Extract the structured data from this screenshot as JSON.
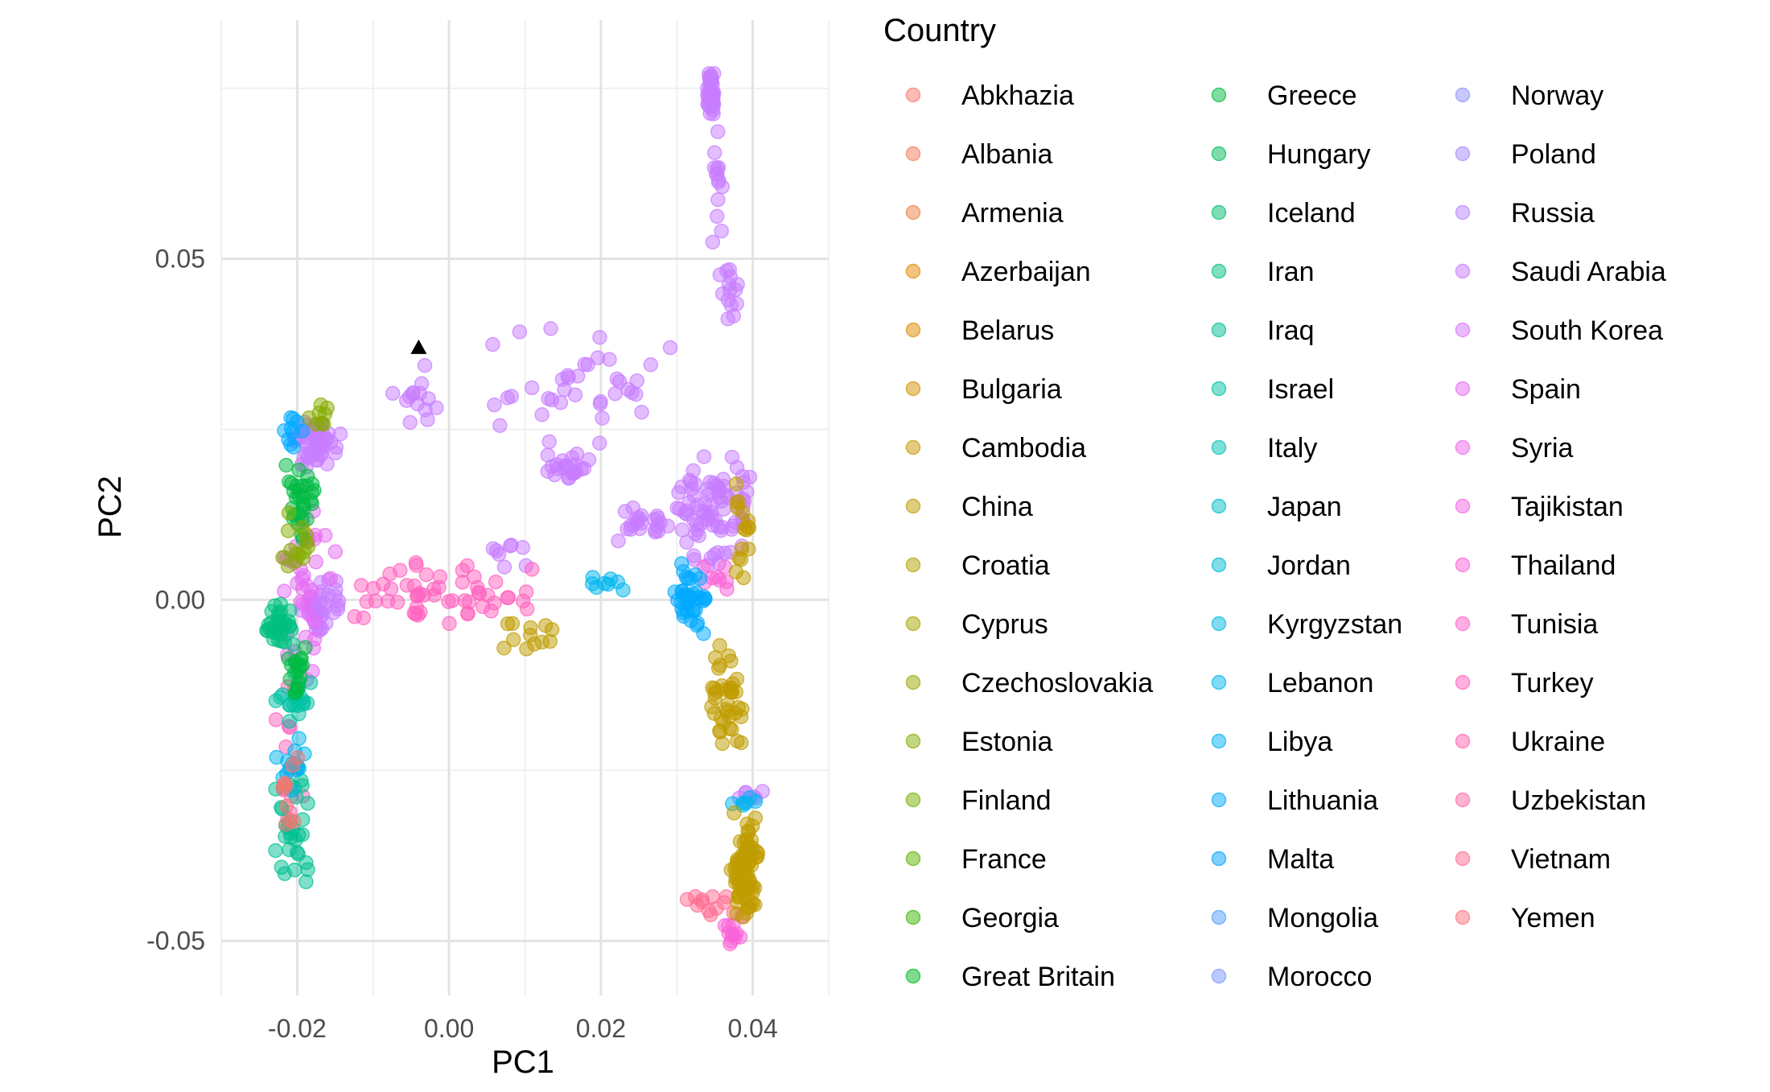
{
  "chart_data": {
    "type": "scatter",
    "title": "",
    "xlabel": "PC1",
    "ylabel": "PC2",
    "xlim": [
      -0.03,
      0.05
    ],
    "ylim": [
      -0.058,
      0.085
    ],
    "x_ticks": [
      -0.02,
      0.0,
      0.02,
      0.04
    ],
    "x_tick_labels": [
      "-0.02",
      "0.00",
      "0.02",
      "0.04"
    ],
    "y_ticks": [
      -0.05,
      0.0,
      0.05
    ],
    "y_tick_labels": [
      "-0.05",
      "0.00",
      "0.05"
    ],
    "grid": true,
    "point_alpha": 0.5,
    "legend": {
      "title": "Country",
      "placement": "right",
      "columns": 3,
      "entries": [
        {
          "name": "Abkhazia",
          "color": "#F8766D"
        },
        {
          "name": "Albania",
          "color": "#F37B59"
        },
        {
          "name": "Armenia",
          "color": "#ED8141"
        },
        {
          "name": "Azerbaijan",
          "color": "#E58700"
        },
        {
          "name": "Belarus",
          "color": "#DE8C00"
        },
        {
          "name": "Bulgaria",
          "color": "#D49200"
        },
        {
          "name": "Cambodia",
          "color": "#C99800"
        },
        {
          "name": "China",
          "color": "#BF9C00"
        },
        {
          "name": "Croatia",
          "color": "#B3A000"
        },
        {
          "name": "Cyprus",
          "color": "#A5A400"
        },
        {
          "name": "Czechoslovakia",
          "color": "#97A800"
        },
        {
          "name": "Estonia",
          "color": "#86AB00"
        },
        {
          "name": "Finland",
          "color": "#73AF00"
        },
        {
          "name": "France",
          "color": "#5BB300"
        },
        {
          "name": "Georgia",
          "color": "#3DB600"
        },
        {
          "name": "Great Britain",
          "color": "#00B81F"
        },
        {
          "name": "Greece",
          "color": "#00BA42"
        },
        {
          "name": "Hungary",
          "color": "#00BC59"
        },
        {
          "name": "Iceland",
          "color": "#00BD6D"
        },
        {
          "name": "Iran",
          "color": "#00BF7F"
        },
        {
          "name": "Iraq",
          "color": "#00C091"
        },
        {
          "name": "Israel",
          "color": "#00C1A3"
        },
        {
          "name": "Italy",
          "color": "#00C0B4"
        },
        {
          "name": "Japan",
          "color": "#00BFC4"
        },
        {
          "name": "Jordan",
          "color": "#00BCD3"
        },
        {
          "name": "Kyrgyzstan",
          "color": "#00B9E1"
        },
        {
          "name": "Lebanon",
          "color": "#00B5EE"
        },
        {
          "name": "Libya",
          "color": "#00B0F6"
        },
        {
          "name": "Lithuania",
          "color": "#00A9FF"
        },
        {
          "name": "Malta",
          "color": "#00A2FF"
        },
        {
          "name": "Mongolia",
          "color": "#529EFF"
        },
        {
          "name": "Morocco",
          "color": "#7997FF"
        },
        {
          "name": "Norway",
          "color": "#8F91FF"
        },
        {
          "name": "Poland",
          "color": "#A58AFF"
        },
        {
          "name": "Russia",
          "color": "#B983FF"
        },
        {
          "name": "Saudi Arabia",
          "color": "#C77CFF"
        },
        {
          "name": "South Korea",
          "color": "#D575FE"
        },
        {
          "name": "Spain",
          "color": "#E76BF3"
        },
        {
          "name": "Syria",
          "color": "#EF67EB"
        },
        {
          "name": "Tajikistan",
          "color": "#F564E3"
        },
        {
          "name": "Thailand",
          "color": "#FA62D8"
        },
        {
          "name": "Tunisia",
          "color": "#FD61CB"
        },
        {
          "name": "Turkey",
          "color": "#FF61BE"
        },
        {
          "name": "Ukraine",
          "color": "#FF63B0"
        },
        {
          "name": "Uzbekistan",
          "color": "#FF67A4"
        },
        {
          "name": "Vietnam",
          "color": "#FF6C91"
        },
        {
          "name": "Yemen",
          "color": "#FC717F"
        }
      ]
    },
    "highlighted_point": {
      "x": -0.004,
      "y": 0.037,
      "shape": "triangle",
      "color": "#000000"
    },
    "clusters": [
      {
        "color": "#C77CFF",
        "x": [
          0.0338,
          0.0352
        ],
        "y": [
          0.07,
          0.078
        ],
        "n": 40
      },
      {
        "color": "#C77CFF",
        "x": [
          0.0345,
          0.0365
        ],
        "y": [
          0.05,
          0.07
        ],
        "n": 14
      },
      {
        "color": "#C77CFF",
        "x": [
          0.035,
          0.0385
        ],
        "y": [
          0.04,
          0.05
        ],
        "n": 14
      },
      {
        "color": "#C77CFF",
        "x": [
          0.029,
          0.041
        ],
        "y": [
          0.004,
          0.022
        ],
        "n": 80
      },
      {
        "color": "#C77CFF",
        "x": [
          0.021,
          0.029
        ],
        "y": [
          0.008,
          0.014
        ],
        "n": 22
      },
      {
        "color": "#C77CFF",
        "x": [
          0.012,
          0.02
        ],
        "y": [
          0.017,
          0.022
        ],
        "n": 22
      },
      {
        "color": "#C77CFF",
        "x": [
          0.005,
          0.03
        ],
        "y": [
          0.022,
          0.042
        ],
        "n": 38
      },
      {
        "color": "#C77CFF",
        "x": [
          -0.008,
          0.0
        ],
        "y": [
          0.022,
          0.036
        ],
        "n": 14
      },
      {
        "color": "#C77CFF",
        "x": [
          -0.021,
          -0.014
        ],
        "y": [
          0.019,
          0.027
        ],
        "n": 50
      },
      {
        "color": "#C77CFF",
        "x": [
          -0.02,
          -0.014
        ],
        "y": [
          -0.005,
          0.004
        ],
        "n": 40
      },
      {
        "color": "#C77CFF",
        "x": [
          0.003,
          0.012
        ],
        "y": [
          0.004,
          0.01
        ],
        "n": 8
      },
      {
        "color": "#C77CFF",
        "x": [
          0.037,
          0.042
        ],
        "y": [
          -0.031,
          -0.027
        ],
        "n": 7
      },
      {
        "color": "#E76BF3",
        "x": [
          -0.024,
          -0.014
        ],
        "y": [
          -0.012,
          0.015
        ],
        "n": 35
      },
      {
        "color": "#FF61BE",
        "x": [
          -0.016,
          0.014
        ],
        "y": [
          -0.004,
          0.006
        ],
        "n": 55
      },
      {
        "color": "#FF61BE",
        "x": [
          -0.023,
          -0.019
        ],
        "y": [
          -0.035,
          -0.01
        ],
        "n": 14
      },
      {
        "color": "#FF6C91",
        "x": [
          0.029,
          0.039
        ],
        "y": [
          -0.047,
          -0.043
        ],
        "n": 12
      },
      {
        "color": "#FA62D8",
        "x": [
          0.036,
          0.039
        ],
        "y": [
          -0.052,
          -0.045
        ],
        "n": 12
      },
      {
        "color": "#FA62D8",
        "x": [
          0.032,
          0.038
        ],
        "y": [
          0.001,
          0.006
        ],
        "n": 8
      },
      {
        "color": "#00BF7F",
        "x": [
          -0.025,
          -0.02
        ],
        "y": [
          -0.007,
          0.0
        ],
        "n": 35
      },
      {
        "color": "#00C091",
        "x": [
          -0.023,
          -0.018
        ],
        "y": [
          -0.044,
          -0.025
        ],
        "n": 30
      },
      {
        "color": "#00C1A3",
        "x": [
          -0.023,
          -0.018
        ],
        "y": [
          -0.02,
          -0.008
        ],
        "n": 20
      },
      {
        "color": "#00BA42",
        "x": [
          -0.022,
          -0.017
        ],
        "y": [
          0.008,
          0.02
        ],
        "n": 30
      },
      {
        "color": "#00BA42",
        "x": [
          -0.023,
          -0.018
        ],
        "y": [
          -0.016,
          -0.006
        ],
        "n": 18
      },
      {
        "color": "#86AB00",
        "x": [
          -0.019,
          -0.014
        ],
        "y": [
          0.024,
          0.03
        ],
        "n": 8
      },
      {
        "color": "#86AB00",
        "x": [
          -0.023,
          -0.018
        ],
        "y": [
          0.002,
          0.014
        ],
        "n": 14
      },
      {
        "color": "#00A9FF",
        "x": [
          -0.022,
          -0.019
        ],
        "y": [
          0.02,
          0.027
        ],
        "n": 10
      },
      {
        "color": "#00A9FF",
        "x": [
          0.029,
          0.034
        ],
        "y": [
          -0.007,
          0.007
        ],
        "n": 40
      },
      {
        "color": "#00B5EE",
        "x": [
          0.017,
          0.024
        ],
        "y": [
          0.0,
          0.004
        ],
        "n": 8
      },
      {
        "color": "#00B5EE",
        "x": [
          -0.023,
          -0.018
        ],
        "y": [
          -0.03,
          -0.018
        ],
        "n": 14
      },
      {
        "color": "#00B5EE",
        "x": [
          0.037,
          0.042
        ],
        "y": [
          -0.031,
          -0.028
        ],
        "n": 6
      },
      {
        "color": "#BF9C00",
        "x": [
          0.037,
          0.041
        ],
        "y": [
          -0.048,
          -0.03
        ],
        "n": 80
      },
      {
        "color": "#BF9C00",
        "x": [
          0.034,
          0.039
        ],
        "y": [
          -0.025,
          -0.005
        ],
        "n": 40
      },
      {
        "color": "#BF9C00",
        "x": [
          0.037,
          0.04
        ],
        "y": [
          0.002,
          0.018
        ],
        "n": 16
      },
      {
        "color": "#BF9C00",
        "x": [
          0.006,
          0.015
        ],
        "y": [
          -0.008,
          -0.003
        ],
        "n": 12
      },
      {
        "color": "#F8766D",
        "x": [
          -0.023,
          -0.019
        ],
        "y": [
          -0.034,
          -0.022
        ],
        "n": 10
      }
    ]
  }
}
